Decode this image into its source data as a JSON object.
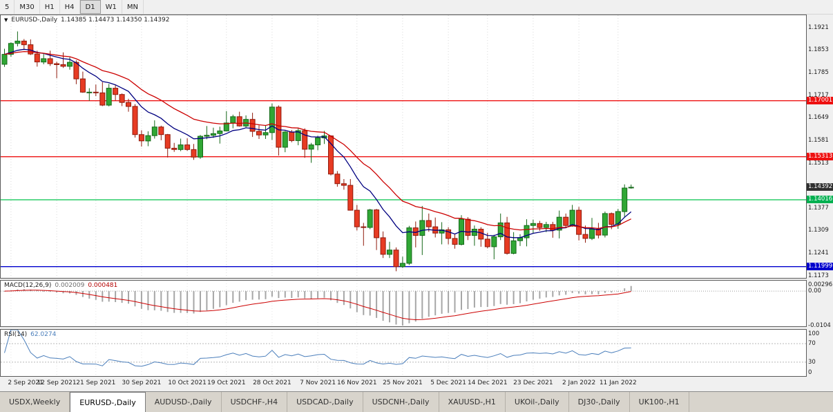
{
  "toolbar": {
    "timeframes": [
      {
        "label": "5",
        "active": false
      },
      {
        "label": "M30",
        "active": false
      },
      {
        "label": "H1",
        "active": false
      },
      {
        "label": "H4",
        "active": false
      },
      {
        "label": "D1",
        "active": true
      },
      {
        "label": "W1",
        "active": false
      },
      {
        "label": "MN",
        "active": false
      }
    ]
  },
  "main_chart": {
    "marker": "▼",
    "symbol": "EURUSD-,Daily",
    "ohlc": "1.14385 1.14473 1.14350 1.14392"
  },
  "macd_panel": {
    "label": "MACD(12,26,9)",
    "value_main": "0.002009",
    "value_signal": "0.000481",
    "axis": [
      {
        "value": 0.00296,
        "text": "0.00296"
      },
      {
        "value": 0,
        "text": "0.00"
      },
      {
        "value": -0.0104,
        "text": "-0.0104"
      }
    ]
  },
  "rsi_panel": {
    "label": "RSI(14)",
    "value": "62.0274",
    "axis": [
      {
        "value": 100,
        "text": "100"
      },
      {
        "value": 70,
        "text": "70"
      },
      {
        "value": 30,
        "text": "30"
      },
      {
        "value": 0,
        "text": "0"
      }
    ],
    "levels": [
      70,
      30
    ]
  },
  "price_axis": {
    "ticks": [
      {
        "value": 1.1921,
        "text": "1.1921"
      },
      {
        "value": 1.1853,
        "text": "1.1853"
      },
      {
        "value": 1.1785,
        "text": "1.1785"
      },
      {
        "value": 1.1717,
        "text": "1.1717"
      },
      {
        "value": 1.1649,
        "text": "1.1649"
      },
      {
        "value": 1.1581,
        "text": "1.1581"
      },
      {
        "value": 1.1513,
        "text": "1.1513"
      },
      {
        "value": 1.1377,
        "text": "1.1377"
      },
      {
        "value": 1.1309,
        "text": "1.1309"
      },
      {
        "value": 1.1241,
        "text": "1.1241"
      },
      {
        "value": 1.1173,
        "text": "1.1173"
      }
    ],
    "boxes": [
      {
        "value": 1.17001,
        "text": "1.17001",
        "color": "#ee1111"
      },
      {
        "value": 1.15313,
        "text": "1.15313",
        "color": "#ee1111"
      },
      {
        "value": 1.14392,
        "text": "1.14392",
        "color": "#2f2f2f"
      },
      {
        "value": 1.14016,
        "text": "1.14016",
        "color": "#00b050"
      },
      {
        "value": 1.11999,
        "text": "1.11999",
        "color": "#0000cd"
      }
    ]
  },
  "tabs": [
    {
      "label": "USDX,Weekly",
      "active": false
    },
    {
      "label": "EURUSD-,Daily",
      "active": true
    },
    {
      "label": "AUDUSD-,Daily",
      "active": false
    },
    {
      "label": "USDCHF-,H4",
      "active": false
    },
    {
      "label": "USDCAD-,Daily",
      "active": false
    },
    {
      "label": "USDCNH-,Daily",
      "active": false
    },
    {
      "label": "XAUUSD-,H1",
      "active": false
    },
    {
      "label": "UKOil-,Daily",
      "active": false
    },
    {
      "label": "DJ30-,Daily",
      "active": false
    },
    {
      "label": "UK100-,H1",
      "active": false
    }
  ],
  "chart_data": {
    "type": "candlestick",
    "symbol": "EURUSD-",
    "timeframe": "Daily",
    "price_scale": {
      "top": 1.1958,
      "bottom": 1.1166
    },
    "hlines": [
      {
        "value": 1.17001,
        "color": "#ee1111"
      },
      {
        "value": 1.15313,
        "color": "#ee1111"
      },
      {
        "value": 1.14016,
        "color": "#00c24b"
      },
      {
        "value": 1.11999,
        "color": "#0000cd"
      }
    ],
    "overlays": [
      {
        "name": "ma-fast",
        "type": "ema",
        "period": 10,
        "color": "#000080"
      },
      {
        "name": "ma-slow",
        "type": "ema",
        "period": 21,
        "color": "#cc0000"
      }
    ],
    "indicators": {
      "macd": {
        "fast": 12,
        "slow": 26,
        "signal": 9,
        "hist_color": "#a6a6a6",
        "signal_color": "#cc0000"
      },
      "rsi": {
        "period": 14,
        "color": "#4a7ebb"
      }
    },
    "colors": {
      "up": "#30a735",
      "up_border": "#146818",
      "down": "#e73b23",
      "down_border": "#8f1a0c",
      "grid": "#d9d9d9"
    },
    "x_labels": [
      {
        "i": 1,
        "t": "2 Sep 2021"
      },
      {
        "i": 8,
        "t": "12 Sep 2021"
      },
      {
        "i": 14,
        "t": "21 Sep 2021"
      },
      {
        "i": 21,
        "t": "30 Sep 2021"
      },
      {
        "i": 28,
        "t": "10 Oct 2021"
      },
      {
        "i": 34,
        "t": "19 Oct 2021"
      },
      {
        "i": 41,
        "t": "28 Oct 2021"
      },
      {
        "i": 48,
        "t": "7 Nov 2021"
      },
      {
        "i": 54,
        "t": "16 Nov 2021"
      },
      {
        "i": 61,
        "t": "25 Nov 2021"
      },
      {
        "i": 68,
        "t": "5 Dec 2021"
      },
      {
        "i": 74,
        "t": "14 Dec 2021"
      },
      {
        "i": 81,
        "t": "23 Dec 2021"
      },
      {
        "i": 88,
        "t": "2 Jan 2022"
      },
      {
        "i": 94,
        "t": "11 Jan 2022"
      }
    ],
    "dates": [
      "2021-09-01",
      "2021-09-02",
      "2021-09-03",
      "2021-09-06",
      "2021-09-07",
      "2021-09-08",
      "2021-09-09",
      "2021-09-10",
      "2021-09-13",
      "2021-09-14",
      "2021-09-15",
      "2021-09-16",
      "2021-09-17",
      "2021-09-20",
      "2021-09-21",
      "2021-09-22",
      "2021-09-23",
      "2021-09-24",
      "2021-09-27",
      "2021-09-28",
      "2021-09-29",
      "2021-09-30",
      "2021-10-01",
      "2021-10-04",
      "2021-10-05",
      "2021-10-06",
      "2021-10-07",
      "2021-10-08",
      "2021-10-11",
      "2021-10-12",
      "2021-10-13",
      "2021-10-14",
      "2021-10-15",
      "2021-10-18",
      "2021-10-19",
      "2021-10-20",
      "2021-10-21",
      "2021-10-22",
      "2021-10-25",
      "2021-10-26",
      "2021-10-27",
      "2021-10-28",
      "2021-10-29",
      "2021-11-01",
      "2021-11-02",
      "2021-11-03",
      "2021-11-04",
      "2021-11-05",
      "2021-11-08",
      "2021-11-09",
      "2021-11-10",
      "2021-11-11",
      "2021-11-12",
      "2021-11-15",
      "2021-11-16",
      "2021-11-17",
      "2021-11-18",
      "2021-11-19",
      "2021-11-22",
      "2021-11-23",
      "2021-11-24",
      "2021-11-25",
      "2021-11-26",
      "2021-11-29",
      "2021-11-30",
      "2021-12-01",
      "2021-12-02",
      "2021-12-03",
      "2021-12-06",
      "2021-12-07",
      "2021-12-08",
      "2021-12-09",
      "2021-12-10",
      "2021-12-13",
      "2021-12-14",
      "2021-12-15",
      "2021-12-16",
      "2021-12-17",
      "2021-12-20",
      "2021-12-21",
      "2021-12-22",
      "2021-12-23",
      "2021-12-24",
      "2021-12-27",
      "2021-12-28",
      "2021-12-29",
      "2021-12-30",
      "2021-12-31",
      "2022-01-03",
      "2022-01-04",
      "2022-01-05",
      "2022-01-06",
      "2022-01-07",
      "2022-01-10",
      "2022-01-11",
      "2022-01-12",
      "2022-01-13"
    ],
    "candles": [
      [
        1.181,
        1.1857,
        1.1802,
        1.184
      ],
      [
        1.184,
        1.1876,
        1.1833,
        1.1873
      ],
      [
        1.1873,
        1.1909,
        1.1864,
        1.188
      ],
      [
        1.188,
        1.1886,
        1.1853,
        1.1869
      ],
      [
        1.1869,
        1.1885,
        1.1838,
        1.1841
      ],
      [
        1.1841,
        1.1851,
        1.1803,
        1.1817
      ],
      [
        1.1817,
        1.1841,
        1.181,
        1.1827
      ],
      [
        1.1827,
        1.1851,
        1.1805,
        1.1812
      ],
      [
        1.1812,
        1.1818,
        1.1768,
        1.1809
      ],
      [
        1.1809,
        1.1846,
        1.1799,
        1.1804
      ],
      [
        1.1804,
        1.1831,
        1.1794,
        1.1816
      ],
      [
        1.1816,
        1.1822,
        1.175,
        1.1766
      ],
      [
        1.1766,
        1.1788,
        1.1724,
        1.1726
      ],
      [
        1.1726,
        1.1738,
        1.17,
        1.1726
      ],
      [
        1.1726,
        1.1749,
        1.1714,
        1.1724
      ],
      [
        1.1724,
        1.1756,
        1.1684,
        1.1687
      ],
      [
        1.1687,
        1.1751,
        1.1683,
        1.1738
      ],
      [
        1.1738,
        1.1747,
        1.1701,
        1.1719
      ],
      [
        1.1719,
        1.1722,
        1.1684,
        1.1695
      ],
      [
        1.1695,
        1.1706,
        1.1667,
        1.1683
      ],
      [
        1.1683,
        1.169,
        1.1589,
        1.1598
      ],
      [
        1.1598,
        1.1611,
        1.1562,
        1.1579
      ],
      [
        1.1579,
        1.1608,
        1.1563,
        1.1595
      ],
      [
        1.1595,
        1.1641,
        1.1586,
        1.1621
      ],
      [
        1.1621,
        1.1625,
        1.1581,
        1.1598
      ],
      [
        1.1598,
        1.16,
        1.1529,
        1.1557
      ],
      [
        1.1557,
        1.1573,
        1.1546,
        1.1553
      ],
      [
        1.1553,
        1.1586,
        1.1548,
        1.1567
      ],
      [
        1.1567,
        1.1587,
        1.1549,
        1.1553
      ],
      [
        1.1553,
        1.157,
        1.1522,
        1.153
      ],
      [
        1.153,
        1.1597,
        1.1525,
        1.1593
      ],
      [
        1.1593,
        1.1624,
        1.1584,
        1.1596
      ],
      [
        1.1596,
        1.1619,
        1.1588,
        1.1601
      ],
      [
        1.1601,
        1.1622,
        1.1571,
        1.1609
      ],
      [
        1.1609,
        1.1669,
        1.1608,
        1.1633
      ],
      [
        1.1633,
        1.1658,
        1.1617,
        1.1652
      ],
      [
        1.1652,
        1.1667,
        1.1622,
        1.1624
      ],
      [
        1.1624,
        1.1656,
        1.162,
        1.1644
      ],
      [
        1.1644,
        1.1664,
        1.1591,
        1.1608
      ],
      [
        1.1608,
        1.1626,
        1.1585,
        1.1597
      ],
      [
        1.1597,
        1.1626,
        1.1585,
        1.1604
      ],
      [
        1.1604,
        1.1692,
        1.1582,
        1.1681
      ],
      [
        1.1681,
        1.1686,
        1.1535,
        1.156
      ],
      [
        1.156,
        1.1609,
        1.1545,
        1.1606
      ],
      [
        1.1606,
        1.1612,
        1.1575,
        1.158
      ],
      [
        1.158,
        1.1616,
        1.1566,
        1.161
      ],
      [
        1.161,
        1.1617,
        1.1528,
        1.1554
      ],
      [
        1.1554,
        1.1573,
        1.1513,
        1.1567
      ],
      [
        1.1567,
        1.1595,
        1.1551,
        1.1588
      ],
      [
        1.1588,
        1.1609,
        1.157,
        1.1594
      ],
      [
        1.1594,
        1.1596,
        1.1475,
        1.1479
      ],
      [
        1.1479,
        1.1488,
        1.1441,
        1.145
      ],
      [
        1.145,
        1.1464,
        1.1432,
        1.1445
      ],
      [
        1.1445,
        1.1464,
        1.1369,
        1.137
      ],
      [
        1.137,
        1.1386,
        1.1309,
        1.132
      ],
      [
        1.132,
        1.1332,
        1.1263,
        1.1318
      ],
      [
        1.1318,
        1.1374,
        1.1313,
        1.1371
      ],
      [
        1.1371,
        1.1374,
        1.125,
        1.1287
      ],
      [
        1.1287,
        1.1306,
        1.1226,
        1.1237
      ],
      [
        1.1237,
        1.1275,
        1.1226,
        1.125
      ],
      [
        1.125,
        1.1258,
        1.1186,
        1.12
      ],
      [
        1.12,
        1.123,
        1.1196,
        1.121
      ],
      [
        1.121,
        1.1323,
        1.1205,
        1.1317
      ],
      [
        1.1317,
        1.1336,
        1.1258,
        1.1294
      ],
      [
        1.1294,
        1.1383,
        1.1235,
        1.1339
      ],
      [
        1.1339,
        1.136,
        1.1305,
        1.132
      ],
      [
        1.132,
        1.1348,
        1.1288,
        1.1301
      ],
      [
        1.1301,
        1.1334,
        1.1267,
        1.1311
      ],
      [
        1.1311,
        1.1319,
        1.1267,
        1.1285
      ],
      [
        1.1285,
        1.1298,
        1.1254,
        1.1267
      ],
      [
        1.1267,
        1.1355,
        1.1264,
        1.1343
      ],
      [
        1.1343,
        1.1349,
        1.128,
        1.1294
      ],
      [
        1.1294,
        1.1324,
        1.1263,
        1.1313
      ],
      [
        1.1313,
        1.1319,
        1.126,
        1.1283
      ],
      [
        1.1283,
        1.1302,
        1.1255,
        1.126
      ],
      [
        1.126,
        1.1296,
        1.1222,
        1.129
      ],
      [
        1.129,
        1.136,
        1.128,
        1.1332
      ],
      [
        1.1332,
        1.135,
        1.1236,
        1.124
      ],
      [
        1.124,
        1.1304,
        1.1237,
        1.1278
      ],
      [
        1.1278,
        1.1298,
        1.1262,
        1.1287
      ],
      [
        1.1287,
        1.1343,
        1.1261,
        1.1324
      ],
      [
        1.1324,
        1.1342,
        1.1301,
        1.133
      ],
      [
        1.133,
        1.1338,
        1.1308,
        1.1318
      ],
      [
        1.1318,
        1.1335,
        1.1304,
        1.1327
      ],
      [
        1.1327,
        1.1335,
        1.1287,
        1.131
      ],
      [
        1.131,
        1.1369,
        1.1285,
        1.1349
      ],
      [
        1.1349,
        1.136,
        1.1316,
        1.1324
      ],
      [
        1.1324,
        1.1386,
        1.132,
        1.137
      ],
      [
        1.137,
        1.138,
        1.1279,
        1.1297
      ],
      [
        1.1297,
        1.1324,
        1.1272,
        1.1285
      ],
      [
        1.1285,
        1.1347,
        1.128,
        1.1313
      ],
      [
        1.1313,
        1.1332,
        1.1285,
        1.1295
      ],
      [
        1.1295,
        1.1366,
        1.1288,
        1.136
      ],
      [
        1.136,
        1.1363,
        1.1313,
        1.1327
      ],
      [
        1.1327,
        1.1374,
        1.1314,
        1.1366
      ],
      [
        1.1366,
        1.1448,
        1.135,
        1.1437
      ],
      [
        1.14385,
        1.14473,
        1.1435,
        1.14392
      ]
    ]
  }
}
